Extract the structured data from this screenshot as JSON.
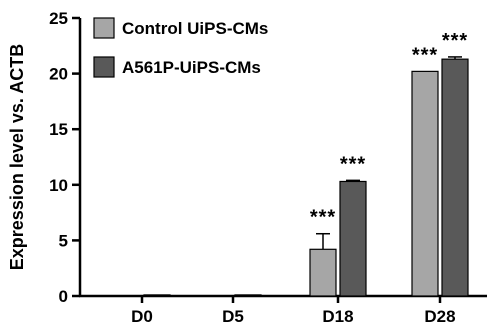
{
  "chart_data": {
    "type": "bar",
    "ylabel": "Expression level vs. ACTB",
    "ylim": [
      0,
      25
    ],
    "yticks": [
      0,
      5,
      10,
      15,
      20,
      25
    ],
    "categories": [
      "D0",
      "D5",
      "D18",
      "D28"
    ],
    "series": [
      {
        "name": "Control UiPS-CMs",
        "color": "#a6a6a6",
        "values": [
          0.0,
          0.0,
          4.2,
          20.2
        ],
        "errors": [
          0.0,
          0.0,
          1.4,
          0.0
        ],
        "significance": [
          "",
          "",
          "***",
          "***"
        ]
      },
      {
        "name": "A561P-UiPS-CMs",
        "color": "#595959",
        "values": [
          0.1,
          0.1,
          10.3,
          21.3
        ],
        "errors": [
          0.0,
          0.0,
          0.1,
          0.2
        ],
        "significance": [
          "",
          "",
          "***",
          "***"
        ]
      }
    ],
    "legend_position": "top-left",
    "grid": false
  }
}
